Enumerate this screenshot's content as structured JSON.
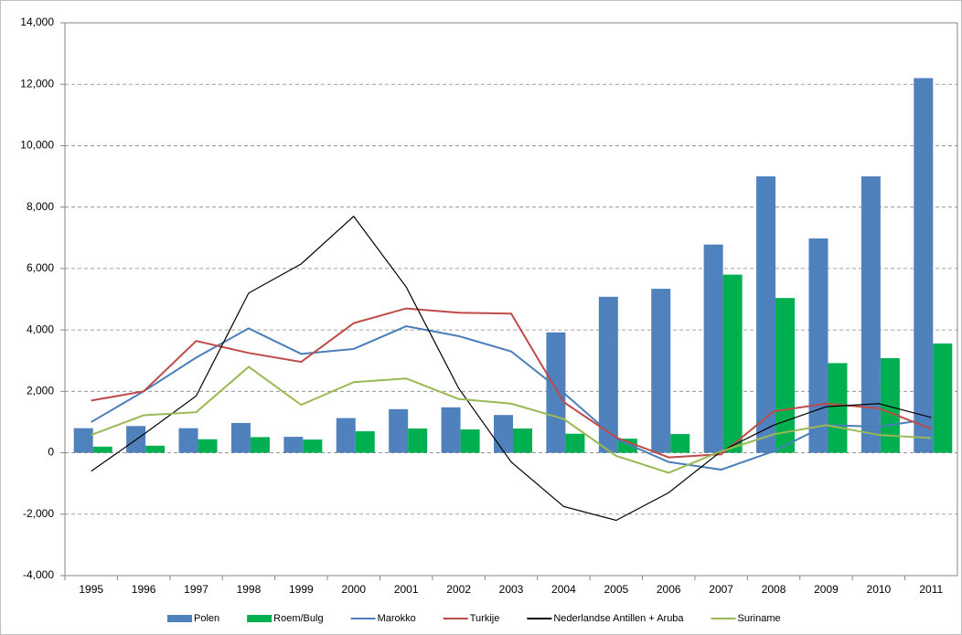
{
  "chart_data": {
    "type": "combo",
    "categories": [
      "1995",
      "1996",
      "1997",
      "1998",
      "1999",
      "2000",
      "2001",
      "2002",
      "2003",
      "2004",
      "2005",
      "2006",
      "2007",
      "2008",
      "2009",
      "2010",
      "2011"
    ],
    "series": [
      {
        "name": "Polen",
        "type": "bar",
        "color": "#4f81bd",
        "values": [
          800,
          870,
          800,
          970,
          520,
          1130,
          1420,
          1480,
          1230,
          3920,
          5080,
          5340,
          6780,
          9000,
          6980,
          9000,
          12200
        ]
      },
      {
        "name": "Roem/Bulg",
        "type": "bar",
        "color": "#00b050",
        "values": [
          200,
          230,
          440,
          510,
          430,
          700,
          790,
          760,
          790,
          620,
          460,
          610,
          5800,
          5040,
          2920,
          3080,
          3560
        ]
      },
      {
        "name": "Marokko",
        "type": "line",
        "color": "#4a7ebb",
        "values": [
          1000,
          2000,
          3100,
          4050,
          3220,
          3380,
          4120,
          3800,
          3300,
          1950,
          450,
          -300,
          -550,
          50,
          900,
          850,
          1100
        ]
      },
      {
        "name": "Turkije",
        "type": "line",
        "color": "#be4b48",
        "values": [
          1700,
          2000,
          3640,
          3250,
          2960,
          4220,
          4700,
          4560,
          4530,
          1650,
          500,
          -150,
          -50,
          1350,
          1600,
          1450,
          780
        ]
      },
      {
        "name": "Nederlandse Antillen + Aruba",
        "type": "line",
        "color": "#000000",
        "values": [
          -600,
          600,
          1850,
          5200,
          6150,
          7700,
          5400,
          2100,
          -300,
          -1750,
          -2200,
          -1300,
          50,
          900,
          1500,
          1600,
          1150
        ]
      },
      {
        "name": "Suriname",
        "type": "line",
        "color": "#98b954",
        "values": [
          580,
          1220,
          1320,
          2800,
          1560,
          2300,
          2420,
          1750,
          1600,
          1100,
          -100,
          -650,
          50,
          600,
          900,
          580,
          480
        ]
      }
    ],
    "ylim": [
      -4000,
      14000
    ],
    "yticks": [
      {
        "value": -4000,
        "label": "-4,000"
      },
      {
        "value": -2000,
        "label": "-2,000"
      },
      0,
      {
        "value": 2000,
        "label": "2,000"
      },
      {
        "value": 4000,
        "label": "4,000"
      },
      {
        "value": 6000,
        "label": "6,000"
      },
      {
        "value": 8000,
        "label": "8,000"
      },
      {
        "value": 10000,
        "label": "10,000"
      },
      {
        "value": 12000,
        "label": "12,000"
      },
      {
        "value": 14000,
        "label": "14,000"
      }
    ],
    "grid": true,
    "legend": "bottom"
  }
}
